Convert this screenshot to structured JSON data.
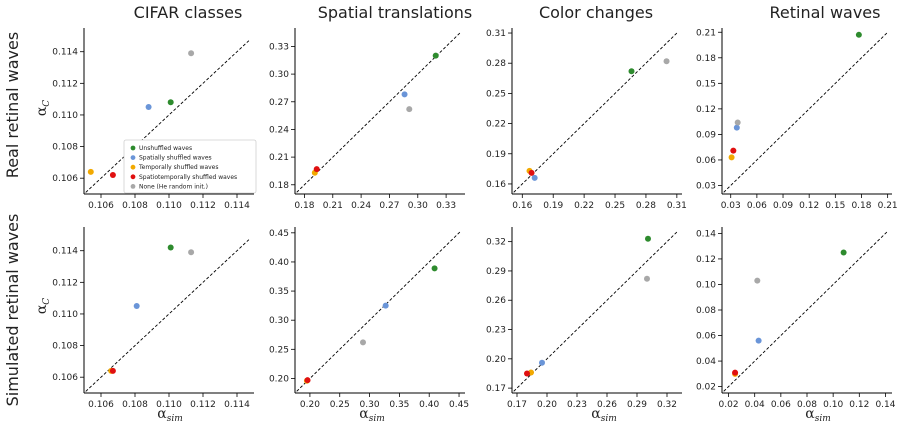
{
  "column_titles": [
    "CIFAR classes",
    "Spatial translations",
    "Color changes",
    "Retinal waves"
  ],
  "row_titles": [
    "Real retinal waves",
    "Simulated retinal waves"
  ],
  "y_axis_label": {
    "main": "α",
    "sub": "C"
  },
  "x_axis_label": {
    "main": "α",
    "sub": "sim"
  },
  "colors": {
    "Unshuffled waves": "#2e8b2e",
    "Spatially shuffled waves": "#6a95d8",
    "Temporally shuffled waves": "#f2a900",
    "Spatiotemporally shuffled waves": "#e01010",
    "None (He random init.)": "#a8a8a8"
  },
  "legend": {
    "placement": "lower-right of top-left panel",
    "entries": [
      "Unshuffled waves",
      "Spatially shuffled waves",
      "Temporally shuffled waves",
      "Spatiotemporally shuffled waves",
      "None (He random init.)"
    ]
  },
  "chart_data": [
    {
      "type": "scatter",
      "row": 0,
      "col": 0,
      "xlim": [
        0.105,
        0.115
      ],
      "ylim": [
        0.105,
        0.1155
      ],
      "xticks": [
        "0.106",
        "0.108",
        "0.110",
        "0.112",
        "0.114"
      ],
      "xtick_values": [
        0.106,
        0.108,
        0.11,
        0.112,
        0.114
      ],
      "yticks": [
        "0.106",
        "0.108",
        "0.110",
        "0.112",
        "0.114"
      ],
      "ytick_values": [
        0.106,
        0.108,
        0.11,
        0.112,
        0.114
      ],
      "diagonal": true,
      "points": [
        {
          "series": "Unshuffled waves",
          "x": 0.1101,
          "y": 0.1108
        },
        {
          "series": "Spatially shuffled waves",
          "x": 0.1088,
          "y": 0.1105
        },
        {
          "series": "Temporally shuffled waves",
          "x": 0.1054,
          "y": 0.1064
        },
        {
          "series": "Spatiotemporally shuffled waves",
          "x": 0.1067,
          "y": 0.1062
        },
        {
          "series": "None (He random init.)",
          "x": 0.1113,
          "y": 0.1139
        }
      ]
    },
    {
      "type": "scatter",
      "row": 0,
      "col": 1,
      "xlim": [
        0.17,
        0.35
      ],
      "ylim": [
        0.17,
        0.35
      ],
      "xticks": [
        "0.18",
        "0.21",
        "0.24",
        "0.27",
        "0.30",
        "0.33"
      ],
      "xtick_values": [
        0.18,
        0.21,
        0.24,
        0.27,
        0.3,
        0.33
      ],
      "yticks": [
        "0.18",
        "0.21",
        "0.24",
        "0.27",
        "0.30",
        "0.33"
      ],
      "ytick_values": [
        0.18,
        0.21,
        0.24,
        0.27,
        0.3,
        0.33
      ],
      "diagonal": true,
      "points": [
        {
          "series": "Unshuffled waves",
          "x": 0.319,
          "y": 0.32
        },
        {
          "series": "Spatially shuffled waves",
          "x": 0.286,
          "y": 0.278
        },
        {
          "series": "Temporally shuffled waves",
          "x": 0.191,
          "y": 0.193
        },
        {
          "series": "Spatiotemporally shuffled waves",
          "x": 0.193,
          "y": 0.197
        },
        {
          "series": "None (He random init.)",
          "x": 0.291,
          "y": 0.262
        }
      ]
    },
    {
      "type": "scatter",
      "row": 0,
      "col": 2,
      "xlim": [
        0.15,
        0.315
      ],
      "ylim": [
        0.15,
        0.315
      ],
      "xticks": [
        "0.16",
        "0.19",
        "0.22",
        "0.25",
        "0.28",
        "0.31"
      ],
      "xtick_values": [
        0.16,
        0.19,
        0.22,
        0.25,
        0.28,
        0.31
      ],
      "yticks": [
        "0.16",
        "0.19",
        "0.22",
        "0.25",
        "0.28",
        "0.31"
      ],
      "ytick_values": [
        0.16,
        0.19,
        0.22,
        0.25,
        0.28,
        0.31
      ],
      "diagonal": true,
      "points": [
        {
          "series": "Unshuffled waves",
          "x": 0.266,
          "y": 0.272
        },
        {
          "series": "Spatially shuffled waves",
          "x": 0.172,
          "y": 0.166
        },
        {
          "series": "Temporally shuffled waves",
          "x": 0.167,
          "y": 0.173
        },
        {
          "series": "Spatiotemporally shuffled waves",
          "x": 0.169,
          "y": 0.171
        },
        {
          "series": "None (He random init.)",
          "x": 0.3,
          "y": 0.282
        }
      ]
    },
    {
      "type": "scatter",
      "row": 0,
      "col": 3,
      "xlim": [
        0.02,
        0.215
      ],
      "ylim": [
        0.02,
        0.215
      ],
      "xticks": [
        "0.03",
        "0.06",
        "0.09",
        "0.12",
        "0.15",
        "0.18",
        "0.21"
      ],
      "xtick_values": [
        0.03,
        0.06,
        0.09,
        0.12,
        0.15,
        0.18,
        0.21
      ],
      "yticks": [
        "0.03",
        "0.06",
        "0.09",
        "0.12",
        "0.15",
        "0.18",
        "0.21"
      ],
      "ytick_values": [
        0.03,
        0.06,
        0.09,
        0.12,
        0.15,
        0.18,
        0.21
      ],
      "diagonal": true,
      "points": [
        {
          "series": "Unshuffled waves",
          "x": 0.177,
          "y": 0.207
        },
        {
          "series": "Spatially shuffled waves",
          "x": 0.037,
          "y": 0.098
        },
        {
          "series": "Temporally shuffled waves",
          "x": 0.031,
          "y": 0.063
        },
        {
          "series": "Spatiotemporally shuffled waves",
          "x": 0.033,
          "y": 0.071
        },
        {
          "series": "None (He random init.)",
          "x": 0.038,
          "y": 0.104
        }
      ]
    },
    {
      "type": "scatter",
      "row": 1,
      "col": 0,
      "xlim": [
        0.105,
        0.115
      ],
      "ylim": [
        0.105,
        0.1155
      ],
      "xticks": [
        "0.106",
        "0.108",
        "0.110",
        "0.112",
        "0.114"
      ],
      "xtick_values": [
        0.106,
        0.108,
        0.11,
        0.112,
        0.114
      ],
      "yticks": [
        "0.106",
        "0.108",
        "0.110",
        "0.112",
        "0.114"
      ],
      "ytick_values": [
        0.106,
        0.108,
        0.11,
        0.112,
        0.114
      ],
      "diagonal": true,
      "points": [
        {
          "series": "Unshuffled waves",
          "x": 0.1101,
          "y": 0.1142
        },
        {
          "series": "Spatially shuffled waves",
          "x": 0.1081,
          "y": 0.1105
        },
        {
          "series": "Temporally shuffled waves",
          "x": 0.1066,
          "y": 0.1064
        },
        {
          "series": "Spatiotemporally shuffled waves",
          "x": 0.1067,
          "y": 0.1064
        },
        {
          "series": "None (He random init.)",
          "x": 0.1113,
          "y": 0.1139
        }
      ]
    },
    {
      "type": "scatter",
      "row": 1,
      "col": 1,
      "xlim": [
        0.175,
        0.46
      ],
      "ylim": [
        0.175,
        0.46
      ],
      "xticks": [
        "0.20",
        "0.25",
        "0.30",
        "0.35",
        "0.40",
        "0.45"
      ],
      "xtick_values": [
        0.2,
        0.25,
        0.3,
        0.35,
        0.4,
        0.45
      ],
      "yticks": [
        "0.20",
        "0.25",
        "0.30",
        "0.35",
        "0.40",
        "0.45"
      ],
      "ytick_values": [
        0.2,
        0.25,
        0.3,
        0.35,
        0.4,
        0.45
      ],
      "diagonal": true,
      "points": [
        {
          "series": "Unshuffled waves",
          "x": 0.409,
          "y": 0.389
        },
        {
          "series": "Spatially shuffled waves",
          "x": 0.327,
          "y": 0.325
        },
        {
          "series": "Temporally shuffled waves",
          "x": 0.195,
          "y": 0.196
        },
        {
          "series": "Spatiotemporally shuffled waves",
          "x": 0.196,
          "y": 0.197
        },
        {
          "series": "None (He random init.)",
          "x": 0.289,
          "y": 0.262
        }
      ]
    },
    {
      "type": "scatter",
      "row": 1,
      "col": 2,
      "xlim": [
        0.165,
        0.335
      ],
      "ylim": [
        0.165,
        0.335
      ],
      "xticks": [
        "0.17",
        "0.20",
        "0.23",
        "0.26",
        "0.29",
        "0.32"
      ],
      "xtick_values": [
        0.17,
        0.2,
        0.23,
        0.26,
        0.29,
        0.32
      ],
      "yticks": [
        "0.17",
        "0.20",
        "0.23",
        "0.26",
        "0.29",
        "0.32"
      ],
      "ytick_values": [
        0.17,
        0.2,
        0.23,
        0.26,
        0.29,
        0.32
      ],
      "diagonal": true,
      "points": [
        {
          "series": "Unshuffled waves",
          "x": 0.301,
          "y": 0.323
        },
        {
          "series": "Spatially shuffled waves",
          "x": 0.195,
          "y": 0.196
        },
        {
          "series": "Temporally shuffled waves",
          "x": 0.184,
          "y": 0.186
        },
        {
          "series": "Spatiotemporally shuffled waves",
          "x": 0.18,
          "y": 0.185
        },
        {
          "series": "None (He random init.)",
          "x": 0.3,
          "y": 0.282
        }
      ]
    },
    {
      "type": "scatter",
      "row": 1,
      "col": 3,
      "xlim": [
        0.015,
        0.145
      ],
      "ylim": [
        0.015,
        0.145
      ],
      "xticks": [
        "0.02",
        "0.04",
        "0.06",
        "0.08",
        "0.10",
        "0.12",
        "0.14"
      ],
      "xtick_values": [
        0.02,
        0.04,
        0.06,
        0.08,
        0.1,
        0.12,
        0.14
      ],
      "yticks": [
        "0.02",
        "0.04",
        "0.06",
        "0.08",
        "0.10",
        "0.12",
        "0.14"
      ],
      "ytick_values": [
        0.02,
        0.04,
        0.06,
        0.08,
        0.1,
        0.12,
        0.14
      ],
      "diagonal": true,
      "points": [
        {
          "series": "Unshuffled waves",
          "x": 0.108,
          "y": 0.125
        },
        {
          "series": "Spatially shuffled waves",
          "x": 0.043,
          "y": 0.056
        },
        {
          "series": "Temporally shuffled waves",
          "x": 0.025,
          "y": 0.03
        },
        {
          "series": "Spatiotemporally shuffled waves",
          "x": 0.025,
          "y": 0.031
        },
        {
          "series": "None (He random init.)",
          "x": 0.042,
          "y": 0.103
        }
      ]
    }
  ]
}
